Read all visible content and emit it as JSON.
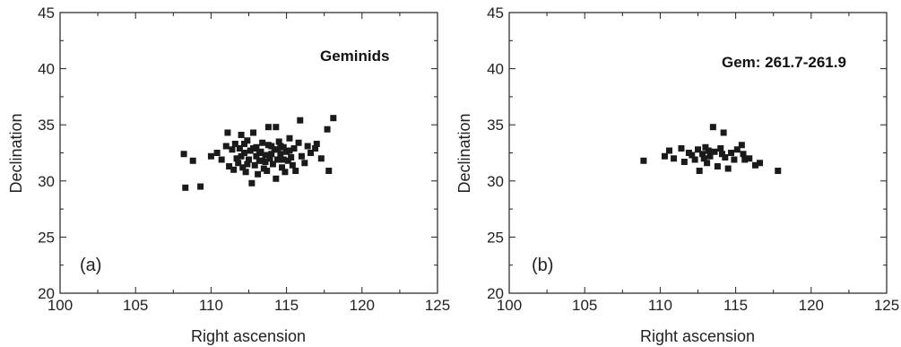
{
  "chart_data": [
    {
      "type": "scatter",
      "panel_label": "(a)",
      "annotation": "Geminids",
      "xlabel": "Right ascension",
      "ylabel": "Declination",
      "xlim": [
        100,
        125
      ],
      "ylim": [
        20,
        45
      ],
      "xticks": [
        100,
        105,
        110,
        115,
        120,
        125
      ],
      "yticks": [
        20,
        25,
        30,
        35,
        40,
        45
      ],
      "grid": false,
      "points": [
        [
          108.2,
          32.4
        ],
        [
          108.3,
          29.4
        ],
        [
          108.8,
          31.8
        ],
        [
          109.3,
          29.5
        ],
        [
          110.0,
          32.2
        ],
        [
          110.4,
          32.5
        ],
        [
          110.7,
          31.9
        ],
        [
          111.0,
          33.1
        ],
        [
          111.1,
          34.3
        ],
        [
          111.2,
          31.3
        ],
        [
          111.4,
          32.8
        ],
        [
          111.5,
          31.0
        ],
        [
          111.6,
          33.3
        ],
        [
          111.7,
          32.0
        ],
        [
          111.8,
          31.6
        ],
        [
          111.9,
          32.9
        ],
        [
          112.0,
          34.1
        ],
        [
          112.1,
          31.2
        ],
        [
          112.2,
          32.5
        ],
        [
          112.3,
          30.8
        ],
        [
          112.4,
          33.6
        ],
        [
          112.5,
          31.9
        ],
        [
          112.6,
          32.7
        ],
        [
          112.7,
          29.8
        ],
        [
          112.8,
          34.3
        ],
        [
          112.9,
          31.4
        ],
        [
          113.0,
          32.2
        ],
        [
          113.0,
          33.0
        ],
        [
          113.1,
          30.6
        ],
        [
          113.2,
          31.8
        ],
        [
          113.3,
          32.6
        ],
        [
          113.4,
          33.4
        ],
        [
          113.5,
          31.1
        ],
        [
          113.6,
          32.3
        ],
        [
          113.7,
          30.9
        ],
        [
          113.8,
          34.8
        ],
        [
          113.9,
          32.0
        ],
        [
          114.0,
          33.1
        ],
        [
          114.1,
          31.5
        ],
        [
          114.2,
          32.8
        ],
        [
          114.3,
          30.2
        ],
        [
          114.3,
          34.8
        ],
        [
          114.4,
          31.9
        ],
        [
          114.5,
          33.5
        ],
        [
          114.6,
          32.4
        ],
        [
          114.7,
          31.2
        ],
        [
          114.8,
          33.0
        ],
        [
          114.9,
          30.8
        ],
        [
          115.0,
          32.6
        ],
        [
          115.1,
          31.8
        ],
        [
          115.2,
          33.8
        ],
        [
          115.3,
          32.1
        ],
        [
          115.4,
          31.4
        ],
        [
          115.5,
          32.9
        ],
        [
          115.6,
          30.9
        ],
        [
          115.8,
          33.4
        ],
        [
          115.9,
          35.4
        ],
        [
          116.0,
          32.2
        ],
        [
          116.2,
          31.6
        ],
        [
          116.4,
          33.1
        ],
        [
          116.6,
          32.5
        ],
        [
          116.9,
          32.9
        ],
        [
          117.0,
          33.3
        ],
        [
          117.3,
          32.0
        ],
        [
          117.7,
          34.6
        ],
        [
          117.8,
          30.9
        ],
        [
          118.1,
          35.6
        ],
        [
          112.0,
          32.2
        ],
        [
          112.4,
          31.5
        ],
        [
          112.8,
          32.9
        ],
        [
          113.2,
          32.5
        ],
        [
          113.6,
          31.7
        ],
        [
          114.0,
          32.4
        ],
        [
          114.4,
          32.8
        ],
        [
          114.8,
          31.9
        ],
        [
          113.4,
          31.8
        ],
        [
          114.6,
          33.1
        ],
        [
          112.2,
          33.3
        ],
        [
          113.8,
          33.2
        ],
        [
          115.2,
          32.7
        ]
      ]
    },
    {
      "type": "scatter",
      "panel_label": "(b)",
      "annotation": "Gem: 261.7-261.9",
      "xlabel": "Right ascension",
      "ylabel": "Declination",
      "xlim": [
        100,
        125
      ],
      "ylim": [
        20,
        45
      ],
      "xticks": [
        100,
        105,
        110,
        115,
        120,
        125
      ],
      "yticks": [
        20,
        25,
        30,
        35,
        40,
        45
      ],
      "grid": false,
      "points": [
        [
          108.9,
          31.8
        ],
        [
          110.3,
          32.2
        ],
        [
          110.6,
          32.7
        ],
        [
          110.9,
          32.0
        ],
        [
          111.4,
          32.9
        ],
        [
          111.6,
          31.7
        ],
        [
          111.9,
          32.5
        ],
        [
          112.1,
          32.3
        ],
        [
          112.3,
          31.9
        ],
        [
          112.5,
          32.8
        ],
        [
          112.6,
          30.9
        ],
        [
          112.8,
          32.4
        ],
        [
          113.0,
          33.0
        ],
        [
          113.1,
          31.6
        ],
        [
          113.3,
          32.2
        ],
        [
          113.5,
          34.8
        ],
        [
          113.6,
          32.6
        ],
        [
          113.8,
          31.3
        ],
        [
          114.0,
          32.9
        ],
        [
          114.2,
          34.3
        ],
        [
          114.3,
          32.1
        ],
        [
          114.5,
          31.1
        ],
        [
          114.7,
          32.5
        ],
        [
          114.9,
          31.9
        ],
        [
          115.1,
          32.8
        ],
        [
          115.4,
          33.2
        ],
        [
          115.6,
          31.9
        ],
        [
          115.9,
          32.0
        ],
        [
          116.3,
          31.4
        ],
        [
          116.6,
          31.6
        ],
        [
          117.8,
          30.9
        ],
        [
          113.2,
          32.7
        ],
        [
          114.1,
          32.4
        ],
        [
          112.9,
          32.0
        ],
        [
          115.5,
          32.4
        ]
      ]
    }
  ]
}
